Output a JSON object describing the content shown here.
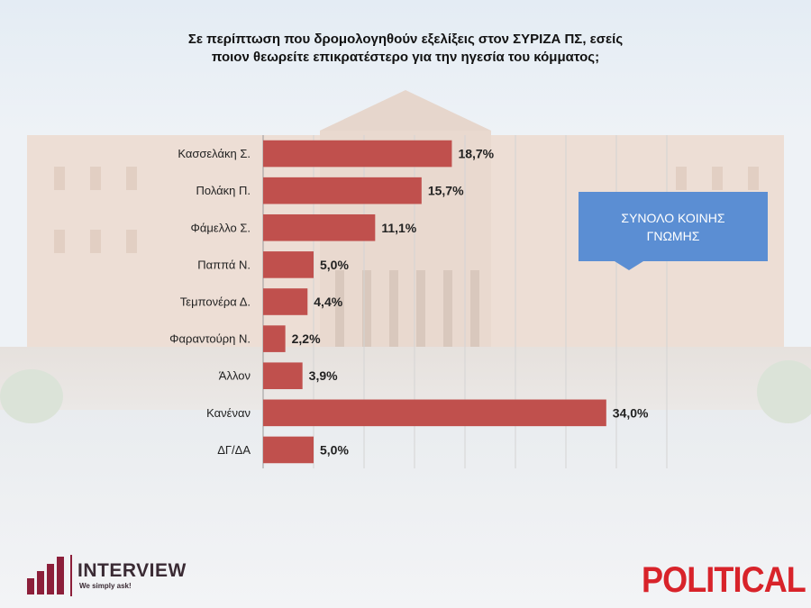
{
  "chart_data": {
    "type": "bar",
    "orientation": "horizontal",
    "title": "Σε περίπτωση που δρομολογηθούν εξελίξεις στον ΣΥΡΙΖΑ ΠΣ, εσείς ποιον θεωρείτε επικρατέστερο για την ηγεσία του κόμματος;",
    "categories": [
      "Κασσελάκη Σ.",
      "Πολάκη Π.",
      "Φάμελλο Σ.",
      "Παππά Ν.",
      "Τεμπονέρα Δ.",
      "Φαραντούρη Ν.",
      "Άλλον",
      "Κανέναν",
      "ΔΓ/ΔΑ"
    ],
    "values": [
      18.7,
      15.7,
      11.1,
      5.0,
      4.4,
      2.2,
      3.9,
      34.0,
      5.0
    ],
    "value_labels": [
      "18,7%",
      "15,7%",
      "11,1%",
      "5,0%",
      "4,4%",
      "2,2%",
      "3,9%",
      "34,0%",
      "5,0%"
    ],
    "xlim": [
      0,
      40
    ],
    "grid": true,
    "bar_color": "#c0504d",
    "annotation": "ΣΥΝΟΛΟ ΚΟΙΝΗΣ ΓΝΩΜΗΣ"
  },
  "branding": {
    "interview_name": "INTERVIEW",
    "interview_slogan": "We simply ask!",
    "interview_color": "#8c1f3a",
    "political_name": "POLITICAL",
    "political_color": "#d8232a"
  }
}
